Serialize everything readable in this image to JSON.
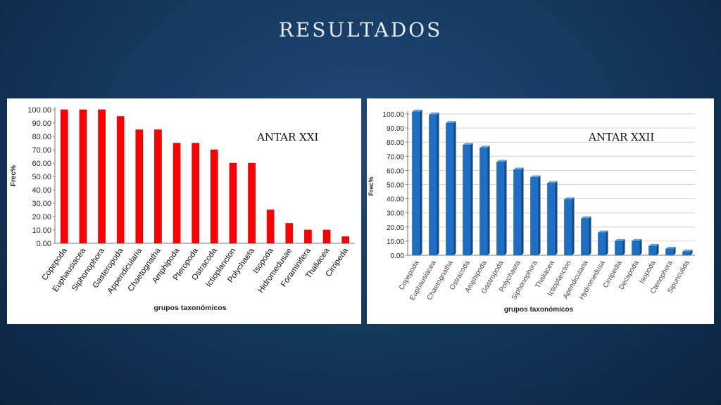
{
  "slide": {
    "title": "RESULTADOS"
  },
  "chart_data": [
    {
      "type": "bar",
      "title": "ANTAR XXI",
      "xlabel": "grupos taxonómicos",
      "ylabel": "Frec%",
      "ylim": [
        0,
        100
      ],
      "yticks": [
        "0.00",
        "10.00",
        "20.00",
        "30.00",
        "40.00",
        "50.00",
        "60.00",
        "70.00",
        "80.00",
        "90.00",
        "100.00"
      ],
      "grid": false,
      "color": "#ff0000",
      "categories": [
        "Copepoda",
        "Euphausiacea",
        "Siphonophora",
        "Gasteropoda",
        "Appendicularia",
        "Chaetognatha",
        "Amphipoda",
        "Pteropoda",
        "Ostracoda",
        "Ictioplancton",
        "Polychaeta",
        "Isopoda",
        "Hidromedusae",
        "Foraminifera",
        "Thaliacea",
        "Cirripeda"
      ],
      "values": [
        100,
        100,
        100,
        95,
        85,
        85,
        75,
        75,
        70,
        60,
        60,
        25,
        15,
        10,
        10,
        5
      ]
    },
    {
      "type": "bar",
      "title": "ANTAR XXII",
      "xlabel": "grupos taxonómicos",
      "ylabel": "Frec%",
      "ylim": [
        0,
        100
      ],
      "yticks": [
        "0.00",
        "10.00",
        "20.00",
        "30.00",
        "40.00",
        "50.00",
        "60.00",
        "70.00",
        "80.00",
        "90.00",
        "100.00"
      ],
      "grid": true,
      "color": "#1f6fc4",
      "categories": [
        "Copepoda",
        "Euphausiacea",
        "Chaetognatha",
        "Ostracoda",
        "Amphipoda",
        "Gastropoda",
        "Polychaeta",
        "Siphonophora",
        "Thaliacea",
        "Ictioplancton",
        "Apendicularia",
        "Hydromedusa",
        "Cirripedia",
        "Decapoda",
        "Isopoda",
        "Ctenophora",
        "Sipunculida"
      ],
      "values": [
        101.5,
        99.5,
        93.5,
        78,
        76,
        66,
        60.5,
        55,
        51,
        39.5,
        26,
        16,
        10,
        10,
        6.5,
        4.5,
        2.5
      ]
    }
  ]
}
